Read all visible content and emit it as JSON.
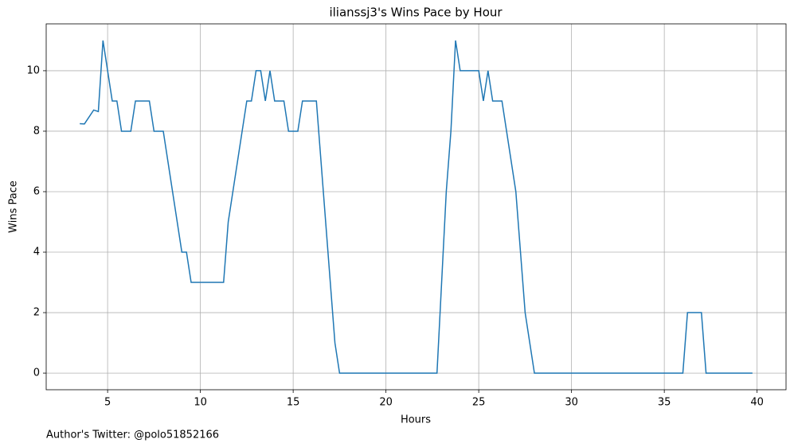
{
  "chart_data": {
    "type": "line",
    "title": "ilianssj3's Wins Pace by Hour",
    "x_label": "Hours",
    "y_label": "Wins Pace",
    "footer": "Author's Twitter: @polo51852166",
    "x": [
      3.5,
      3.75,
      4.25,
      4.5,
      4.75,
      5.25,
      5.5,
      5.75,
      6.25,
      6.5,
      7.25,
      7.5,
      8,
      9,
      9.25,
      9.5,
      11.25,
      11.5,
      12.5,
      12.75,
      13,
      13.25,
      13.5,
      13.75,
      14,
      14.5,
      14.75,
      15.25,
      15.5,
      16.25,
      17.25,
      17.5,
      22.75,
      23.25,
      23.5,
      23.75,
      24,
      25,
      25.25,
      25.5,
      25.75,
      26.25,
      27,
      27.5,
      28,
      36,
      36.25,
      37,
      37.25,
      39.75
    ],
    "series": [
      {
        "name": "Wins Pace",
        "color": "#1f77b4",
        "values": [
          8.25,
          8.24,
          8.7,
          8.65,
          11,
          9,
          9,
          8,
          8,
          9,
          9,
          8,
          8,
          4,
          4,
          3,
          3,
          5,
          9,
          9,
          10,
          10,
          9,
          10,
          9,
          9,
          8,
          8,
          9,
          9,
          1,
          0,
          0,
          6,
          8,
          11,
          10,
          10,
          9,
          10,
          9,
          9,
          6,
          2,
          0,
          0,
          2,
          2,
          0,
          0
        ]
      }
    ],
    "xlim": [
      1.69,
      41.56
    ],
    "ylim": [
      -0.55,
      11.55
    ],
    "xticks": [
      5,
      10,
      15,
      20,
      25,
      30,
      35,
      40
    ],
    "yticks": [
      0,
      2,
      4,
      6,
      8,
      10
    ],
    "grid": true
  }
}
